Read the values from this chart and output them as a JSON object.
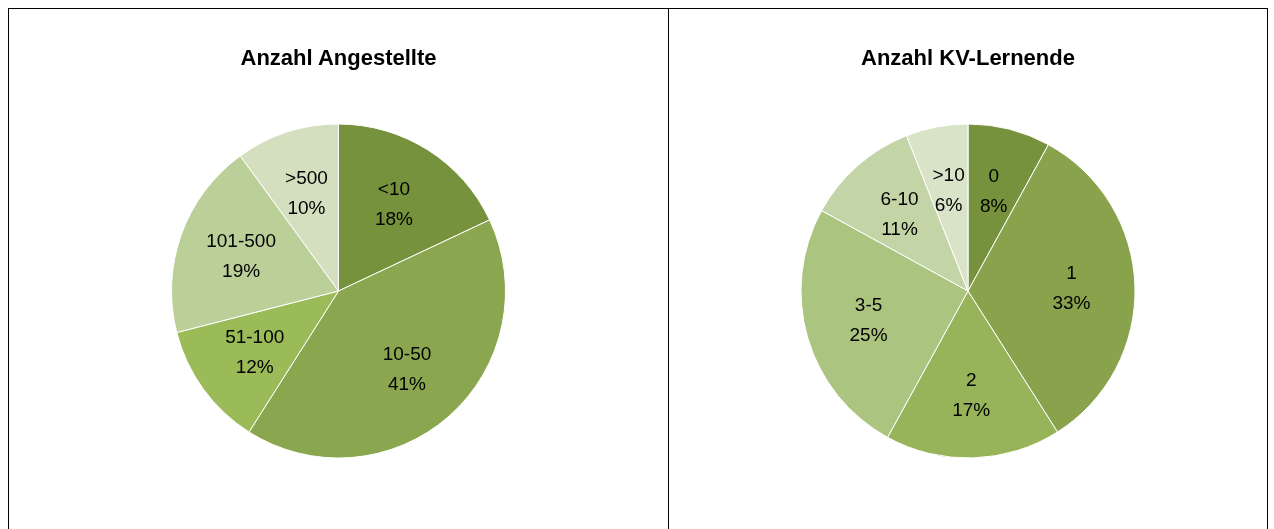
{
  "chart_data": [
    {
      "type": "pie",
      "title": "Anzahl Angestellte",
      "categories": [
        "<10",
        "10-50",
        "51-100",
        "101-500",
        ">500"
      ],
      "values": [
        18,
        41,
        12,
        19,
        10
      ],
      "value_labels": [
        "18%",
        "41%",
        "12%",
        "19%",
        "10%"
      ],
      "colors": [
        "#77923c",
        "#8aa64f",
        "#9bbb59",
        "#bbcf98",
        "#d3dfbf"
      ],
      "legend": false
    },
    {
      "type": "pie",
      "title": "Anzahl KV-Lernende",
      "categories": [
        "0",
        "1",
        "2",
        "3-5",
        "6-10",
        ">10"
      ],
      "values": [
        8,
        33,
        17,
        25,
        11,
        6
      ],
      "value_labels": [
        "8%",
        "33%",
        "17%",
        "25%",
        "11%",
        "6%"
      ],
      "colors": [
        "#77923c",
        "#89a34c",
        "#97b45a",
        "#abc47f",
        "#c3d4a6",
        "#d9e3c8"
      ],
      "legend": false
    }
  ]
}
